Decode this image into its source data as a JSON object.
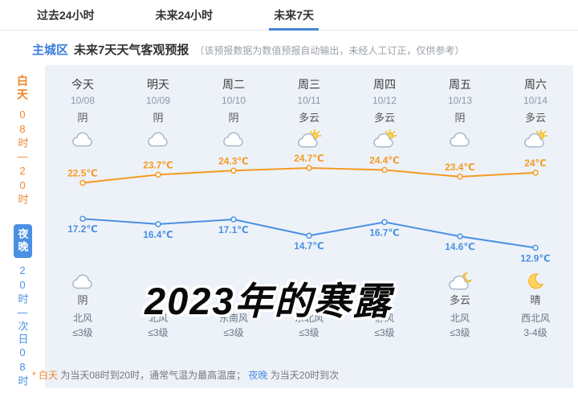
{
  "tabs": {
    "items": [
      {
        "label": "过去24小时",
        "active": false
      },
      {
        "label": "未来24小时",
        "active": false
      },
      {
        "label": "未来7天",
        "active": true
      }
    ]
  },
  "header": {
    "region": "主城区",
    "title": "未来7天天气客观预报",
    "note": "（该预报数据为数值预报自动输出，未经人工订正，仅供参考）"
  },
  "sidebar": {
    "day_tag": "白天",
    "day_range": "08时—20时",
    "night_tag": "夜晚",
    "night_range": "20时—次日08时"
  },
  "columns": [
    {
      "day": "今天",
      "date": "10/08",
      "day_weather": "阴",
      "day_icon": "cloud",
      "night_icon": "cloud",
      "night_weather": "阴",
      "wind": "北风",
      "wind_level": "≤3级"
    },
    {
      "day": "明天",
      "date": "10/09",
      "day_weather": "阴",
      "day_icon": "cloud",
      "night_icon": "",
      "night_weather": "",
      "wind": "北风",
      "wind_level": "≤3级"
    },
    {
      "day": "周二",
      "date": "10/10",
      "day_weather": "阴",
      "day_icon": "cloud",
      "night_icon": "",
      "night_weather": "",
      "wind": "东南风",
      "wind_level": "≤3级"
    },
    {
      "day": "周三",
      "date": "10/11",
      "day_weather": "多云",
      "day_icon": "cloud-sun",
      "night_icon": "",
      "night_weather": "",
      "wind": "东北风",
      "wind_level": "≤3级"
    },
    {
      "day": "周四",
      "date": "10/12",
      "day_weather": "多云",
      "day_icon": "cloud-sun",
      "night_icon": "",
      "night_weather": "",
      "wind": "静风",
      "wind_level": "≤3级"
    },
    {
      "day": "周五",
      "date": "10/13",
      "day_weather": "阴",
      "day_icon": "cloud",
      "night_icon": "cloud-moon",
      "night_weather": "多云",
      "wind": "北风",
      "wind_level": "≤3级"
    },
    {
      "day": "周六",
      "date": "10/14",
      "day_weather": "多云",
      "day_icon": "cloud-sun",
      "night_icon": "moon",
      "night_weather": "晴",
      "wind": "西北风",
      "wind_level": "3-4级"
    }
  ],
  "chart_data": {
    "type": "line",
    "categories": [
      "今天",
      "明天",
      "周二",
      "周三",
      "周四",
      "周五",
      "周六"
    ],
    "series": [
      {
        "name": "白天最高气温",
        "color": "#f59a23",
        "values": [
          22.5,
          23.7,
          24.3,
          24.7,
          24.4,
          23.4,
          24
        ],
        "labels": [
          "22.5℃",
          "23.7℃",
          "24.3℃",
          "24.7℃",
          "24.4℃",
          "23.4℃",
          "24℃"
        ]
      },
      {
        "name": "夜间最低气温",
        "color": "#4a90e2",
        "values": [
          17.2,
          16.4,
          17.1,
          14.7,
          16.7,
          14.6,
          12.9
        ],
        "labels": [
          "17.2℃",
          "16.4℃",
          "17.1℃",
          "14.7℃",
          "16.7℃",
          "14.6℃",
          "12.9℃"
        ]
      }
    ],
    "ylim": [
      12,
      26
    ],
    "legend_position": "none",
    "grid": false
  },
  "watermark": "2023年的寒露",
  "footnote": {
    "star": "*",
    "day_term": "白天",
    "mid": "为当天08时到20时，通常气温为最高温度；",
    "night_term": "夜晚",
    "tail": "为当天20时到次"
  }
}
